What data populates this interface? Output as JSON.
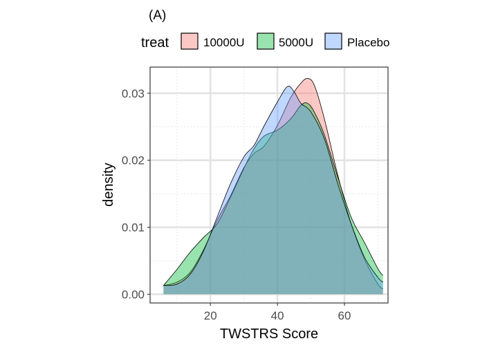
{
  "chart_data": {
    "type": "area",
    "panel_label": "(A)",
    "xlabel": "TWSTRS Score",
    "ylabel": "density",
    "xlim": [
      2,
      73
    ],
    "ylim": [
      -0.0013,
      0.0339
    ],
    "x_ticks": [
      20,
      40,
      60
    ],
    "x_tick_labels": [
      "20",
      "40",
      "60"
    ],
    "y_ticks": [
      0.0,
      0.01,
      0.02,
      0.03
    ],
    "y_tick_labels": [
      "0.00",
      "0.01",
      "0.02",
      "0.03"
    ],
    "x_minor_ticks": [
      10,
      30,
      50,
      70
    ],
    "y_minor_ticks": [
      0.005,
      0.015,
      0.025
    ],
    "grid": true,
    "legend": {
      "title": "treat",
      "position": "top",
      "entries": [
        "10000U",
        "5000U",
        "Placebo"
      ]
    },
    "series": [
      {
        "name": "10000U",
        "color": "#F8766D",
        "points": [
          [
            6,
            0.0013
          ],
          [
            10,
            0.0018
          ],
          [
            14,
            0.0033
          ],
          [
            18,
            0.0067
          ],
          [
            22,
            0.011
          ],
          [
            26,
            0.0147
          ],
          [
            30,
            0.0189
          ],
          [
            33,
            0.021
          ],
          [
            36,
            0.0221
          ],
          [
            40,
            0.0252
          ],
          [
            44,
            0.0294
          ],
          [
            47,
            0.0315
          ],
          [
            49,
            0.0322
          ],
          [
            51,
            0.0312
          ],
          [
            54,
            0.0262
          ],
          [
            58,
            0.0178
          ],
          [
            62,
            0.0105
          ],
          [
            66,
            0.0052
          ],
          [
            70,
            0.0015
          ],
          [
            71.5,
            0.0008
          ]
        ]
      },
      {
        "name": "5000U",
        "color": "#00BA38",
        "points": [
          [
            6,
            0.0013
          ],
          [
            10,
            0.0037
          ],
          [
            14,
            0.0063
          ],
          [
            18,
            0.0085
          ],
          [
            22,
            0.0105
          ],
          [
            26,
            0.0145
          ],
          [
            30,
            0.0188
          ],
          [
            33,
            0.0217
          ],
          [
            36,
            0.0236
          ],
          [
            40,
            0.0245
          ],
          [
            44,
            0.0262
          ],
          [
            47,
            0.0282
          ],
          [
            49,
            0.0285
          ],
          [
            51,
            0.0272
          ],
          [
            54,
            0.0238
          ],
          [
            58,
            0.0175
          ],
          [
            62,
            0.0115
          ],
          [
            66,
            0.0077
          ],
          [
            70,
            0.0038
          ],
          [
            71.5,
            0.0028
          ]
        ]
      },
      {
        "name": "Placebo",
        "color": "#619CFF",
        "points": [
          [
            6,
            0.0013
          ],
          [
            10,
            0.0015
          ],
          [
            14,
            0.003
          ],
          [
            18,
            0.0065
          ],
          [
            22,
            0.0115
          ],
          [
            26,
            0.0165
          ],
          [
            30,
            0.0205
          ],
          [
            33,
            0.0222
          ],
          [
            36,
            0.0251
          ],
          [
            40,
            0.0287
          ],
          [
            43,
            0.031
          ],
          [
            45,
            0.0302
          ],
          [
            47,
            0.0285
          ],
          [
            50,
            0.0272
          ],
          [
            54,
            0.0232
          ],
          [
            58,
            0.0165
          ],
          [
            62,
            0.0105
          ],
          [
            66,
            0.0055
          ],
          [
            70,
            0.0025
          ],
          [
            71.5,
            0.0018
          ]
        ]
      }
    ]
  }
}
